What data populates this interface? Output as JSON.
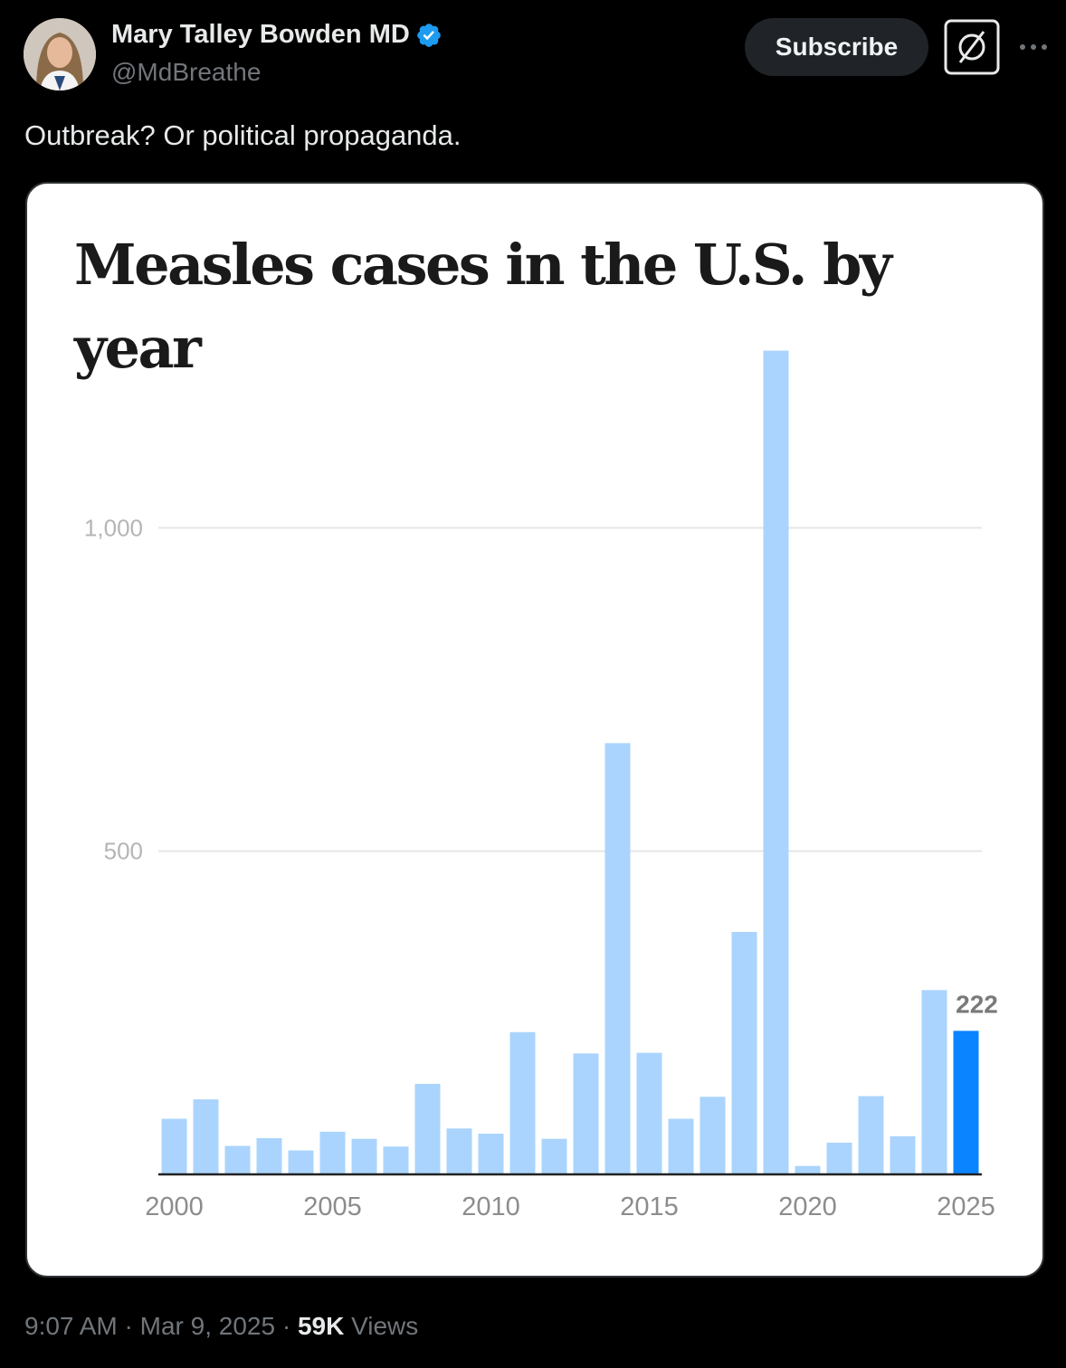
{
  "tweet": {
    "author_name": "Mary Talley Bowden MD",
    "handle": "@MdBreathe",
    "text": "Outbreak? Or political propaganda.",
    "subscribe_label": "Subscribe",
    "time": "9:07 AM",
    "date": "Mar 9, 2025",
    "separator": "·",
    "views_count": "59K",
    "views_label": "Views"
  },
  "icons": {
    "verified": "verified-badge-icon",
    "grok": "grok-icon",
    "more": "more-icon"
  },
  "colors": {
    "background": "#000000",
    "bar": "#aad4fd",
    "bar_highlight": "#0a84ff",
    "verified": "#1d9bf0"
  },
  "chart_data": {
    "type": "bar",
    "title": "Measles cases in the U.S. by year",
    "categories": [
      2000,
      2001,
      2002,
      2003,
      2004,
      2005,
      2006,
      2007,
      2008,
      2009,
      2010,
      2011,
      2012,
      2013,
      2014,
      2015,
      2016,
      2017,
      2018,
      2019,
      2020,
      2021,
      2022,
      2023,
      2024,
      2025
    ],
    "values": [
      86,
      116,
      44,
      56,
      37,
      66,
      55,
      43,
      140,
      71,
      63,
      220,
      55,
      187,
      667,
      188,
      86,
      120,
      375,
      1274,
      13,
      49,
      121,
      59,
      285,
      222
    ],
    "highlight_index": 25,
    "highlight_label": "222",
    "x_tick_labels": [
      "2000",
      "2005",
      "2010",
      "2015",
      "2020",
      "2025"
    ],
    "x_tick_years": [
      2000,
      2005,
      2010,
      2015,
      2020,
      2025
    ],
    "y_ticks": [
      500,
      1000
    ],
    "y_tick_labels": [
      "500",
      "1,000"
    ],
    "ylim": [
      0,
      1300
    ],
    "xlabel": "",
    "ylabel": "",
    "grid": true
  }
}
